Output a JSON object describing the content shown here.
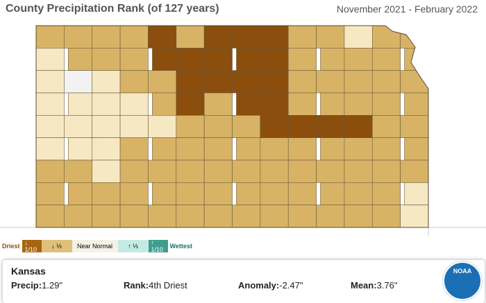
{
  "header": {
    "title": "County Precipitation Rank (of 127 years)",
    "period": "November 2021 - February 2022"
  },
  "legend": {
    "driest": "Driest",
    "items": [
      "↓ 1/10",
      "↓ ⅓",
      "Near Normal",
      "↑ ⅓",
      "↑ 1/10"
    ],
    "wettest": "Wettest"
  },
  "info": {
    "name": "Kansas",
    "fields": [
      {
        "label": "Precip:",
        "value": "1.29\""
      },
      {
        "label": "Rank:",
        "value": "4th Driest"
      },
      {
        "label": "Anomaly:",
        "value": "-2.47\""
      },
      {
        "label": "Mean:",
        "value": "3.76\""
      }
    ]
  },
  "logo": "NOAA"
}
